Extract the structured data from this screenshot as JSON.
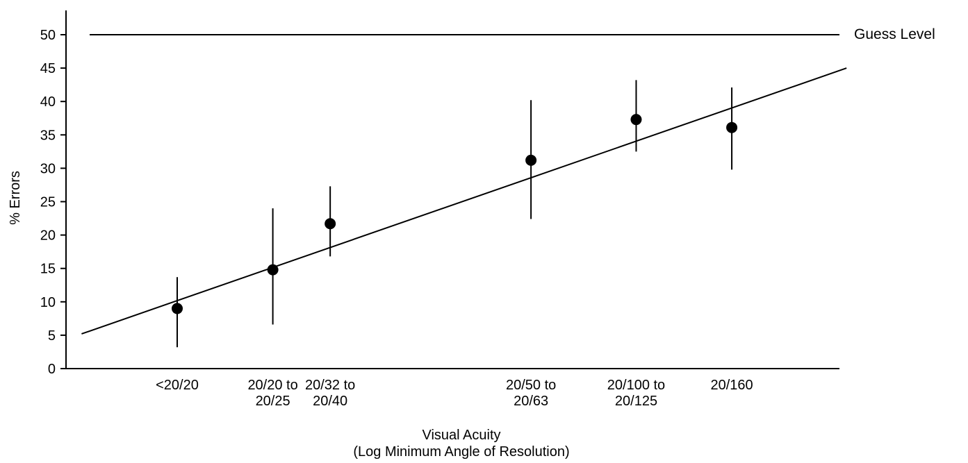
{
  "chart_data": {
    "type": "scatter",
    "xlabel_line1": "Visual Acuity",
    "xlabel_line2": "(Log Minimum Angle of Resolution)",
    "ylabel": "% Errors",
    "ylim": [
      0,
      50
    ],
    "yticks": [
      "0",
      "5",
      "10",
      "15",
      "20",
      "25",
      "30",
      "35",
      "40",
      "45",
      "50"
    ],
    "categories": [
      {
        "line1": "<20/20",
        "line2": ""
      },
      {
        "line1": "20/20 to",
        "line2": "20/25"
      },
      {
        "line1": "20/32 to",
        "line2": "20/40"
      },
      {
        "line1": "20/50 to",
        "line2": "20/63"
      },
      {
        "line1": "20/100 to",
        "line2": "20/125"
      },
      {
        "line1": "20/160",
        "line2": ""
      }
    ],
    "x_positions": [
      0.0,
      1.0,
      1.6,
      3.7,
      4.8,
      5.8
    ],
    "points": [
      {
        "y": 9.0,
        "low": 3.2,
        "high": 13.7
      },
      {
        "y": 14.8,
        "low": 6.6,
        "high": 24.0
      },
      {
        "y": 21.7,
        "low": 16.8,
        "high": 27.3
      },
      {
        "y": 31.2,
        "low": 22.4,
        "high": 40.2
      },
      {
        "y": 37.3,
        "low": 32.5,
        "high": 43.2
      },
      {
        "y": 36.1,
        "low": 29.8,
        "high": 42.1
      }
    ],
    "trend_line": {
      "x_start": -1.0,
      "y_start": 5.2,
      "x_end": 7.0,
      "y_end": 45.0
    },
    "guess_level": {
      "y": 50,
      "label": "Guess Level"
    },
    "colors": {
      "ink": "#000000",
      "background": "#ffffff"
    }
  }
}
